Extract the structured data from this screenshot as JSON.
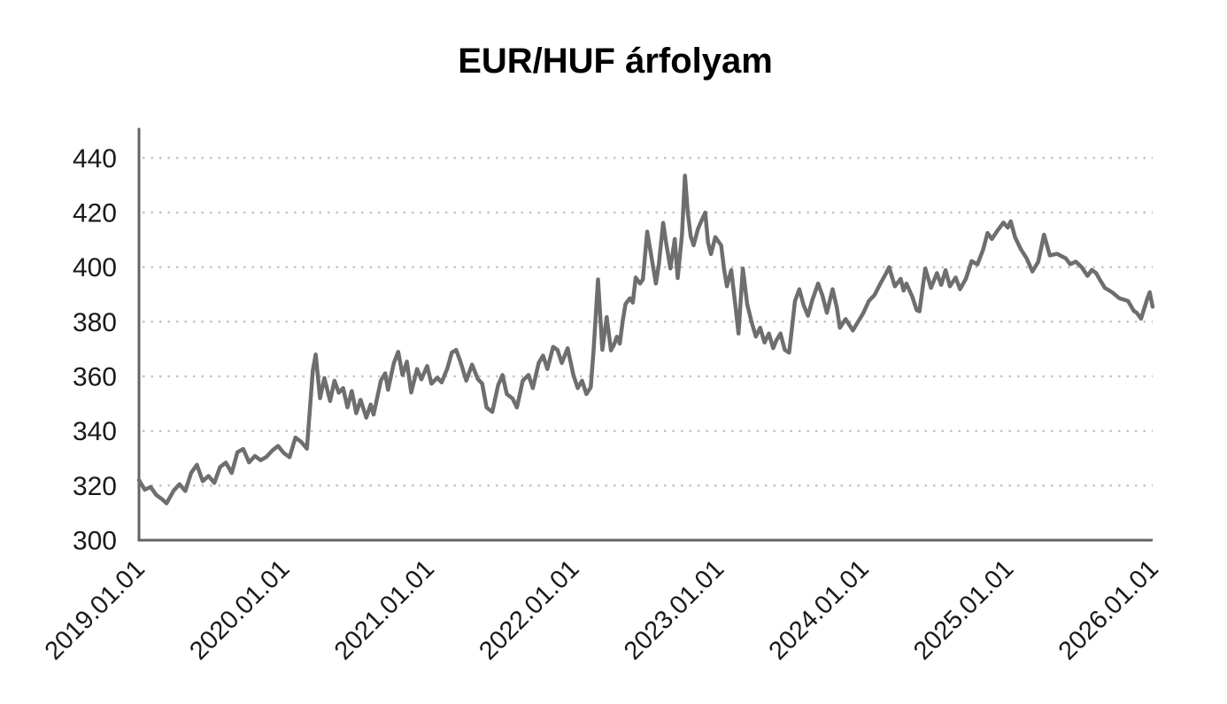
{
  "title": "EUR/HUF árfolyam",
  "colors": {
    "background": "#ffffff",
    "line": "#6e6e6e",
    "axis": "#646464",
    "gridline": "#c6c6c6",
    "title_text": "#000000",
    "tick_text": "#1a1a1a"
  },
  "chart_data": {
    "type": "line",
    "title": "EUR/HUF árfolyam",
    "xlabel": "",
    "ylabel": "",
    "legend": "none",
    "grid": "horizontal-dotted",
    "y_axis": {
      "min": 300,
      "max": 450,
      "major_unit": 20
    },
    "y_tick_labels": [
      "300",
      "320",
      "340",
      "360",
      "380",
      "400",
      "420",
      "440"
    ],
    "y_ticks": [
      300,
      320,
      340,
      360,
      380,
      400,
      420,
      440
    ],
    "x_tick_labels": [
      "2019.01.01",
      "2020.01.01",
      "2021.01.01",
      "2022.01.01",
      "2023.01.01",
      "2024.01.01",
      "2025.01.01",
      "2026.01.01"
    ],
    "x_tick_years_since_start": [
      0,
      1,
      2,
      3,
      4,
      5,
      6,
      7
    ],
    "x_label_rotation_deg": -45,
    "series": [
      {
        "name": "EUR/HUF",
        "x_years_since_2019": [
          0.0,
          0.04,
          0.08,
          0.12,
          0.16,
          0.19,
          0.24,
          0.28,
          0.32,
          0.36,
          0.4,
          0.44,
          0.48,
          0.52,
          0.56,
          0.6,
          0.64,
          0.68,
          0.72,
          0.76,
          0.8,
          0.84,
          0.88,
          0.92,
          0.96,
          1.0,
          1.04,
          1.08,
          1.12,
          1.16,
          1.2,
          1.22,
          1.25,
          1.28,
          1.32,
          1.35,
          1.38,
          1.41,
          1.44,
          1.47,
          1.5,
          1.53,
          1.57,
          1.6,
          1.62,
          1.67,
          1.7,
          1.72,
          1.76,
          1.79,
          1.82,
          1.85,
          1.88,
          1.92,
          1.95,
          1.99,
          2.02,
          2.06,
          2.09,
          2.13,
          2.16,
          2.19,
          2.22,
          2.26,
          2.3,
          2.34,
          2.37,
          2.4,
          2.44,
          2.48,
          2.51,
          2.54,
          2.58,
          2.61,
          2.65,
          2.69,
          2.72,
          2.76,
          2.79,
          2.82,
          2.86,
          2.89,
          2.92,
          2.96,
          3.0,
          3.03,
          3.06,
          3.09,
          3.12,
          3.14,
          3.17,
          3.2,
          3.23,
          3.26,
          3.28,
          3.3,
          3.32,
          3.34,
          3.36,
          3.39,
          3.41,
          3.43,
          3.46,
          3.48,
          3.51,
          3.54,
          3.57,
          3.59,
          3.62,
          3.64,
          3.67,
          3.7,
          3.72,
          3.75,
          3.77,
          3.79,
          3.81,
          3.83,
          3.86,
          3.88,
          3.91,
          3.93,
          3.95,
          3.98,
          4.02,
          4.04,
          4.06,
          4.09,
          4.12,
          4.14,
          4.17,
          4.2,
          4.23,
          4.26,
          4.29,
          4.32,
          4.35,
          4.38,
          4.4,
          4.43,
          4.46,
          4.49,
          4.51,
          4.53,
          4.56,
          4.59,
          4.62,
          4.65,
          4.69,
          4.72,
          4.75,
          4.79,
          4.82,
          4.84,
          4.88,
          4.91,
          4.93,
          4.96,
          5.0,
          5.04,
          5.08,
          5.12,
          5.16,
          5.18,
          5.22,
          5.26,
          5.28,
          5.3,
          5.34,
          5.37,
          5.39,
          5.43,
          5.47,
          5.51,
          5.54,
          5.57,
          5.6,
          5.64,
          5.67,
          5.71,
          5.75,
          5.79,
          5.83,
          5.86,
          5.89,
          5.93,
          5.97,
          6.0,
          6.02,
          6.05,
          6.09,
          6.13,
          6.17,
          6.21,
          6.25,
          6.29,
          6.34,
          6.4,
          6.43,
          6.47,
          6.51,
          6.55,
          6.58,
          6.61,
          6.64,
          6.67,
          6.72,
          6.77,
          6.83,
          6.87,
          6.89,
          6.92,
          6.96,
          6.98,
          7.0
        ],
        "values": [
          322,
          318.5,
          319.5,
          316.5,
          315,
          313.5,
          318.2,
          320.5,
          318,
          324.6,
          327.6,
          321.6,
          323.5,
          321,
          326.8,
          328.4,
          324.6,
          332.2,
          333.4,
          328.5,
          330.8,
          329.3,
          330.5,
          332.8,
          334.5,
          331.9,
          330.4,
          337.6,
          336,
          333.5,
          362,
          368,
          352,
          359.4,
          351,
          358.4,
          354,
          355.7,
          348.6,
          354.6,
          346.5,
          351.4,
          344.9,
          349.7,
          346,
          358.4,
          361.1,
          355.1,
          364.9,
          369,
          360.5,
          365.4,
          354.1,
          362.7,
          358.9,
          363.8,
          357.3,
          359.5,
          357.8,
          363,
          368.7,
          369.7,
          365.4,
          358.4,
          364.3,
          359,
          357.3,
          348.6,
          347,
          356.8,
          360.5,
          353.5,
          351.9,
          348.6,
          358.4,
          360.5,
          355.7,
          364.9,
          367.6,
          362.7,
          370.8,
          369.7,
          364.9,
          370.3,
          360.5,
          355.7,
          358.4,
          353.5,
          356,
          370,
          395.5,
          369.7,
          381.7,
          369.5,
          371.5,
          374.5,
          372,
          380,
          386.5,
          388.6,
          387,
          396.2,
          394,
          395.5,
          413,
          403.5,
          394,
          401,
          416.2,
          409,
          399.5,
          410.3,
          396,
          412,
          433.5,
          420,
          411.3,
          408,
          414,
          416.5,
          420,
          409,
          404.8,
          411,
          408,
          399.5,
          393,
          398.9,
          385.4,
          375.7,
          399.5,
          386.5,
          380,
          374.6,
          377.8,
          372.4,
          375.7,
          370.3,
          373,
          375.7,
          369.7,
          368.7,
          378,
          387.6,
          391.9,
          386,
          382.2,
          388,
          394,
          389.5,
          383.3,
          391.9,
          385,
          377.8,
          381,
          378.5,
          376.8,
          379.5,
          383,
          387.6,
          389.8,
          394,
          397.8,
          400,
          393,
          395.7,
          391.4,
          394,
          389.2,
          384.3,
          383.8,
          399.5,
          392.4,
          397.8,
          393.5,
          398.9,
          393,
          396.2,
          391.9,
          395.7,
          402.2,
          401,
          406.5,
          412.5,
          410.3,
          413.5,
          416.3,
          414.5,
          416.8,
          411,
          406.5,
          403.2,
          398.4,
          402,
          411.9,
          404.3,
          404.9,
          403.2,
          401.1,
          402,
          400,
          396.8,
          399,
          397.8,
          395,
          392.4,
          390.8,
          388.6,
          387.6,
          384,
          383.3,
          381.1,
          388,
          390.8,
          385.5
        ]
      }
    ]
  }
}
